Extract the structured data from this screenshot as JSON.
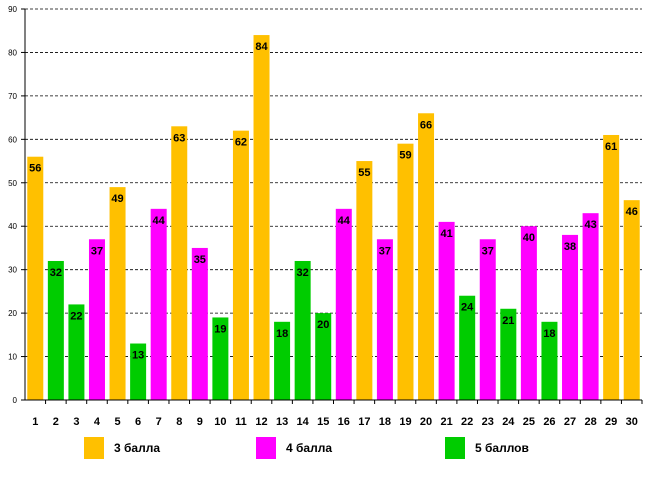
{
  "chart_data": {
    "type": "bar",
    "title": "",
    "xlabel": "",
    "ylabel": "",
    "ylim": [
      0,
      90
    ],
    "ytick_step": 10,
    "grid": true,
    "categories": [
      "1",
      "2",
      "3",
      "4",
      "5",
      "6",
      "7",
      "8",
      "9",
      "10",
      "11",
      "12",
      "13",
      "14",
      "15",
      "16",
      "17",
      "18",
      "19",
      "20",
      "21",
      "22",
      "23",
      "24",
      "25",
      "26",
      "27",
      "28",
      "29",
      "30"
    ],
    "values": [
      56,
      32,
      22,
      37,
      49,
      13,
      44,
      63,
      35,
      19,
      62,
      84,
      18,
      32,
      20,
      44,
      55,
      37,
      59,
      66,
      41,
      24,
      37,
      21,
      40,
      18,
      38,
      43,
      61,
      46
    ],
    "grades": [
      "3",
      "5",
      "5",
      "4",
      "3",
      "5",
      "4",
      "3",
      "4",
      "5",
      "3",
      "3",
      "5",
      "5",
      "5",
      "4",
      "3",
      "4",
      "3",
      "3",
      "4",
      "5",
      "4",
      "5",
      "4",
      "5",
      "4",
      "4",
      "3",
      "3"
    ],
    "value_labels": [
      "56",
      "32",
      "22",
      "37",
      "49",
      "13",
      "44",
      "63",
      "35",
      "19",
      "62",
      "84",
      "18",
      "32",
      "20",
      "44",
      "55",
      "37",
      "59",
      "66",
      "41",
      "24",
      "37",
      "21",
      "40",
      "18",
      "38",
      "43",
      "61",
      "46"
    ],
    "legend": [
      {
        "key": "3",
        "label": "3 балла",
        "color": "#FFC000"
      },
      {
        "key": "4",
        "label": "4 балла",
        "color": "#FF00FF"
      },
      {
        "key": "5",
        "label": "5 баллов",
        "color": "#00CC00"
      }
    ],
    "legend_position": "bottom"
  }
}
